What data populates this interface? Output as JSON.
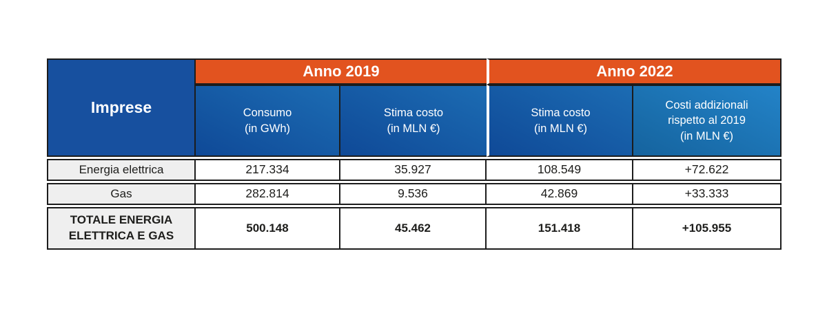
{
  "chart_data": {
    "type": "table",
    "corner_header": "Imprese",
    "column_groups": [
      {
        "label": "Anno 2019",
        "span": 2
      },
      {
        "label": "Anno 2022",
        "span": 2
      }
    ],
    "sub_columns": [
      {
        "group": "Anno 2019",
        "label": "Consumo\n(in GWh)"
      },
      {
        "group": "Anno 2019",
        "label": "Stima costo\n(in MLN €)"
      },
      {
        "group": "Anno 2022",
        "label": "Stima costo\n(in MLN €)"
      },
      {
        "group": "Anno 2022",
        "label": "Costi addizionali\nrispetto al 2019\n(in MLN €)"
      }
    ],
    "rows": [
      {
        "label": "Energia elettrica",
        "values": [
          "217.334",
          "35.927",
          "108.549",
          "+72.622"
        ],
        "total": false
      },
      {
        "label": "Gas",
        "values": [
          "282.814",
          "9.536",
          "42.869",
          "+33.333"
        ],
        "total": false
      },
      {
        "label": "TOTALE ENERGIA\nELETTRICA E GAS",
        "values": [
          "500.148",
          "45.462",
          "151.418",
          "+105.955"
        ],
        "total": true
      }
    ]
  },
  "colors": {
    "accent_orange": "#E2531F",
    "header_blue_dark": "#17509F",
    "header_blue_top": "#1C6CB3",
    "header_blue_bottom": "#0F4997",
    "header_blue_light_top": "#2383C8",
    "header_blue_light_bottom": "#15639E",
    "row_label_bg": "#EFEFEF",
    "border_dark": "#1C1C1C",
    "group_divider_white": "#FFFFFF",
    "text_dark": "#1D1D1B",
    "text_white": "#FFFFFF"
  }
}
